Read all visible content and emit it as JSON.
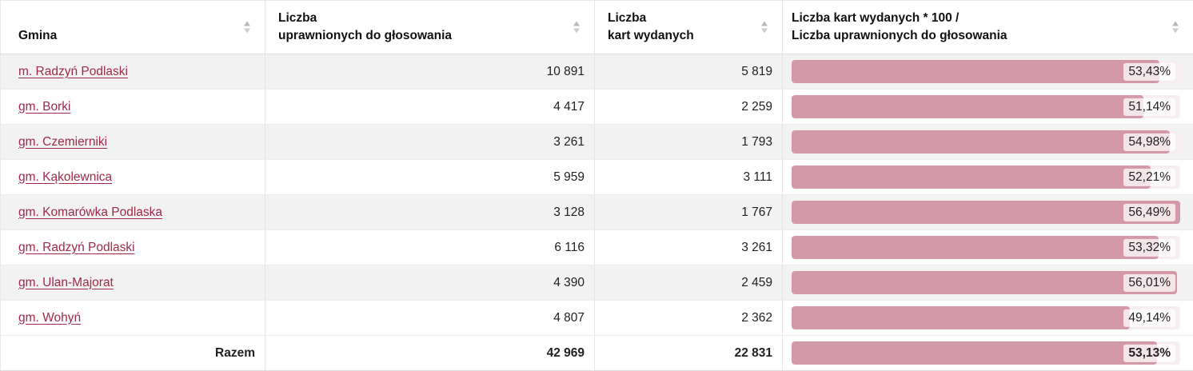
{
  "table": {
    "header": [
      {
        "line1": "Gmina",
        "line2": ""
      },
      {
        "line1": "Liczba",
        "line2": "uprawnionych do głosowania"
      },
      {
        "line1": "Liczba",
        "line2": "kart wydanych"
      },
      {
        "line1": "Liczba kart wydanych * 100 /",
        "line2": "Liczba uprawnionych do głosowania"
      }
    ],
    "rows": [
      {
        "gmina": "m. Radzyń Podlaski",
        "uprawnieni": "10 891",
        "karty": "5 819",
        "procent": "53,43%",
        "procent_value": 53.43
      },
      {
        "gmina": "gm. Borki",
        "uprawnieni": "4 417",
        "karty": "2 259",
        "procent": "51,14%",
        "procent_value": 51.14
      },
      {
        "gmina": "gm. Czemierniki",
        "uprawnieni": "3 261",
        "karty": "1 793",
        "procent": "54,98%",
        "procent_value": 54.98
      },
      {
        "gmina": "gm. Kąkolewnica",
        "uprawnieni": "5 959",
        "karty": "3 111",
        "procent": "52,21%",
        "procent_value": 52.21
      },
      {
        "gmina": "gm. Komarówka Podlaska",
        "uprawnieni": "3 128",
        "karty": "1 767",
        "procent": "56,49%",
        "procent_value": 56.49
      },
      {
        "gmina": "gm. Radzyń Podlaski",
        "uprawnieni": "6 116",
        "karty": "3 261",
        "procent": "53,32%",
        "procent_value": 53.32
      },
      {
        "gmina": "gm. Ulan-Majorat",
        "uprawnieni": "4 390",
        "karty": "2 459",
        "procent": "56,01%",
        "procent_value": 56.01
      },
      {
        "gmina": "gm. Wohyń",
        "uprawnieni": "4 807",
        "karty": "2 362",
        "procent": "49,14%",
        "procent_value": 49.14
      }
    ],
    "total": {
      "label": "Razem",
      "uprawnieni": "42 969",
      "karty": "22 831",
      "procent": "53,13%",
      "procent_value": 53.13
    },
    "bar_scale_max": 56.49,
    "colors": {
      "link": "#a12949",
      "bar_fill": "#d499a8",
      "bar_track": "#f7eef1",
      "row_stripe": "#f2f2f2",
      "border": "#e6e6e6",
      "sort_icon": "#c3c3c3",
      "text": "#212121"
    }
  }
}
